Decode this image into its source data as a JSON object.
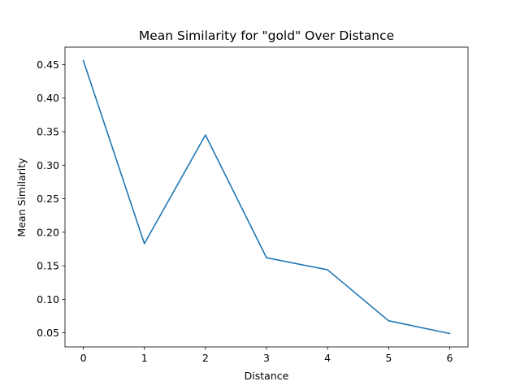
{
  "chart_data": {
    "type": "line",
    "title": "Mean Similarity for \"gold\" Over Distance",
    "xlabel": "Distance",
    "ylabel": "Mean Similarity",
    "x": [
      0,
      1,
      2,
      3,
      4,
      5,
      6
    ],
    "series": [
      {
        "values": [
          0.456,
          0.183,
          0.345,
          0.162,
          0.144,
          0.068,
          0.049
        ],
        "color": "#1f77b4"
      }
    ],
    "x_ticks": [
      "0",
      "1",
      "2",
      "3",
      "4",
      "5",
      "6"
    ],
    "y_ticks": [
      "0.05",
      "0.10",
      "0.15",
      "0.20",
      "0.25",
      "0.30",
      "0.35",
      "0.40",
      "0.45"
    ],
    "xlim": [
      -0.3,
      6.3
    ],
    "ylim": [
      0.029,
      0.476
    ],
    "grid": false,
    "legend": false
  }
}
